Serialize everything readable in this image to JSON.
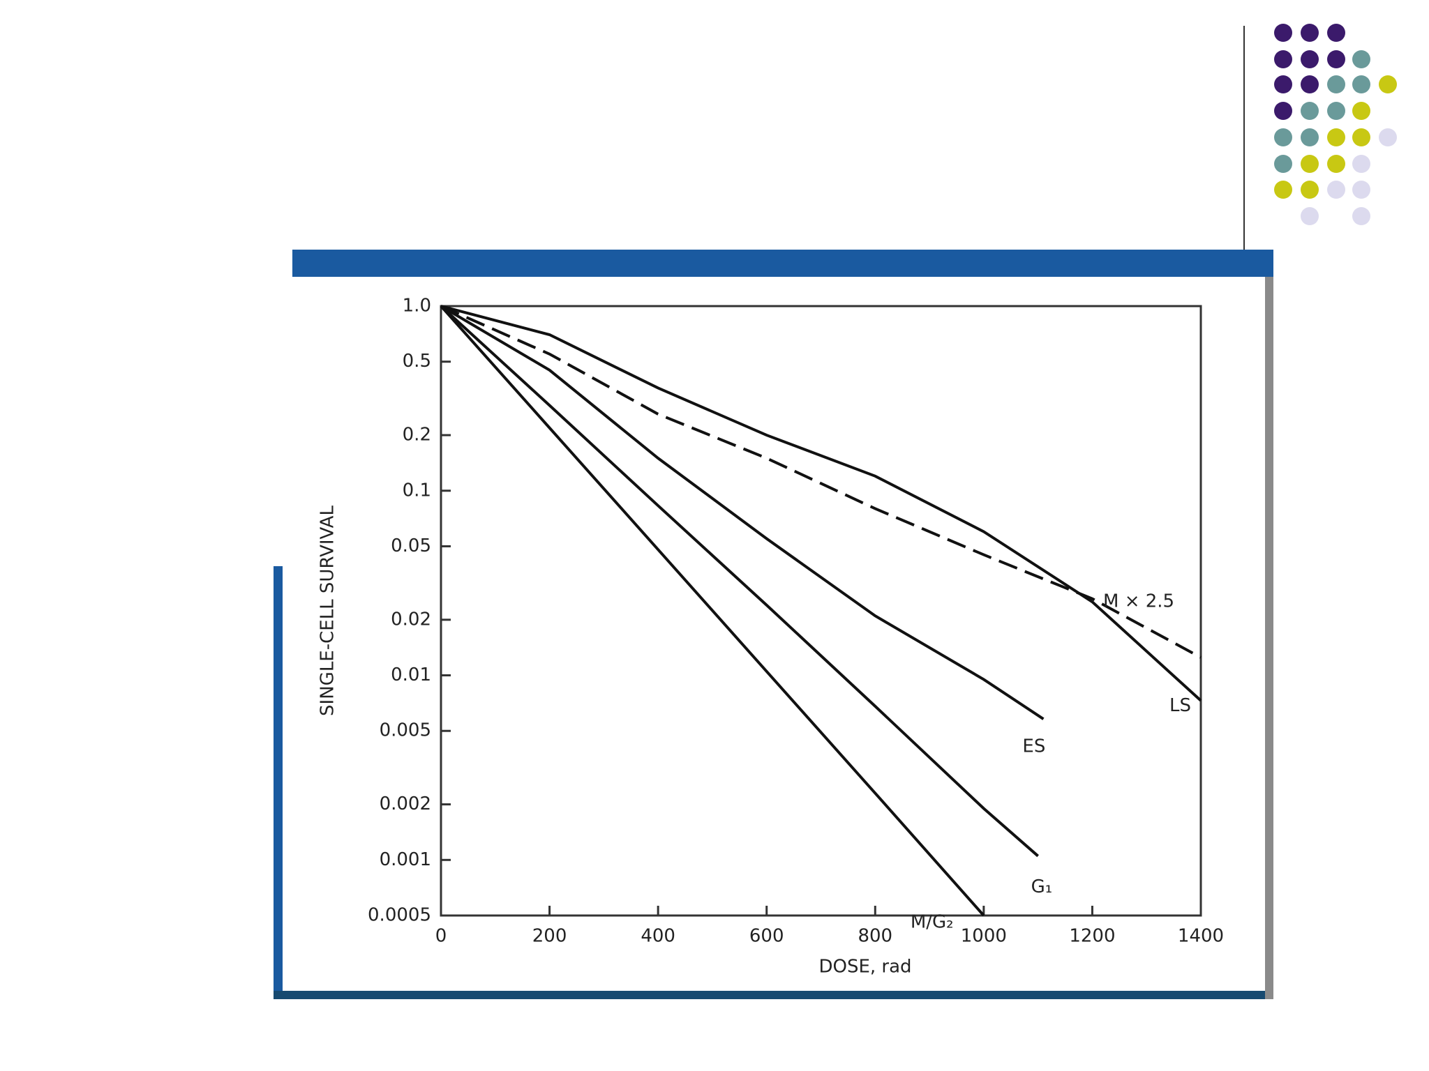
{
  "chart_data": {
    "type": "line",
    "xlabel": "DOSE, rad",
    "ylabel": "SINGLE-CELL SURVIVAL",
    "ylog": true,
    "xlim": [
      0,
      1400
    ],
    "ylim": [
      0.0005,
      1
    ],
    "xticks": [
      0,
      200,
      400,
      600,
      800,
      1000,
      1200,
      1400
    ],
    "yticks": [
      {
        "value": 1,
        "label": "1.0"
      },
      0.5,
      0.2,
      0.1,
      0.05,
      0.02,
      0.01,
      0.005,
      0.002,
      0.001,
      0.0005
    ],
    "series": [
      {
        "name": "M × 2.5",
        "color": "#111111",
        "dashed": true,
        "x": [
          0,
          200,
          400,
          600,
          800,
          1000,
          1200,
          1400
        ],
        "values": [
          1,
          0.55,
          0.26,
          0.15,
          0.08,
          0.045,
          0.026,
          0.0125
        ]
      },
      {
        "name": "LS",
        "color": "#111111",
        "x": [
          0,
          200,
          400,
          600,
          800,
          1000,
          1200,
          1400
        ],
        "values": [
          1,
          0.7,
          0.36,
          0.2,
          0.12,
          0.06,
          0.025,
          0.0073
        ]
      },
      {
        "name": "ES",
        "color": "#111111",
        "x": [
          0,
          200,
          400,
          600,
          800,
          1000,
          1110
        ],
        "values": [
          1,
          0.45,
          0.15,
          0.055,
          0.021,
          0.0095,
          0.0058
        ]
      },
      {
        "name": "G₁",
        "color": "#111111",
        "x": [
          0,
          200,
          400,
          600,
          800,
          1000,
          1100
        ],
        "values": [
          1,
          0.29,
          0.083,
          0.024,
          0.0068,
          0.0019,
          0.00105
        ]
      },
      {
        "name": "M/G₂",
        "color": "#111111",
        "x": [
          0,
          200,
          400,
          600,
          800,
          1000
        ],
        "values": [
          1,
          0.219,
          0.048,
          0.0105,
          0.0023,
          0.0005
        ]
      }
    ]
  }
}
